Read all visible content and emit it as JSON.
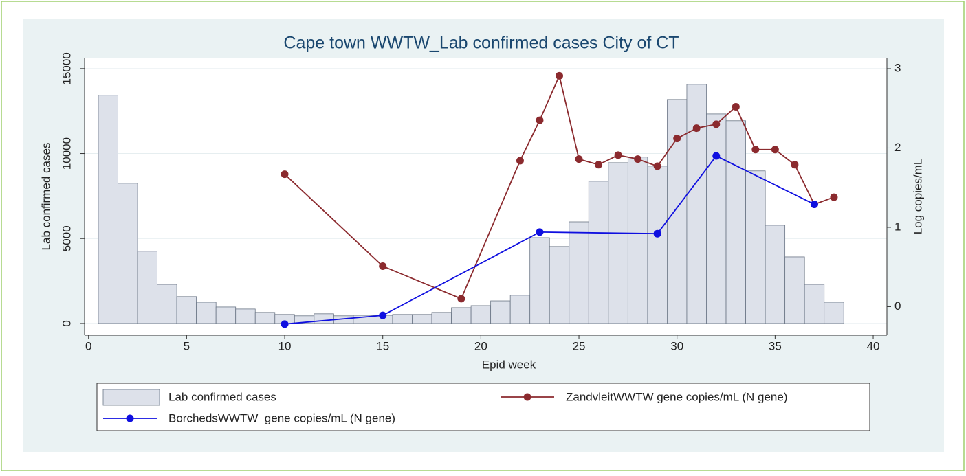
{
  "chart_data": {
    "type": "combo",
    "title": "Cape town WWTW_Lab confirmed cases City of CT",
    "x_label": "Epid week",
    "y_label": "Lab confirmed cases",
    "y2_label": "Log copies/mL",
    "xlim": [
      -0.2,
      40.7
    ],
    "xticks": [
      0,
      5,
      10,
      15,
      20,
      25,
      30,
      35,
      40
    ],
    "ylim": [
      -690,
      15600
    ],
    "yticks": [
      0,
      5000,
      10000,
      15000
    ],
    "y2lim": [
      -0.36,
      3.13
    ],
    "y2ticks": [
      0,
      1,
      2,
      3
    ],
    "grid": true,
    "legend_position": "bottom",
    "series": [
      {
        "name": "Lab confirmed cases",
        "type": "bar",
        "color": "#dde1ea",
        "x": [
          1,
          2,
          3,
          4,
          5,
          6,
          7,
          8,
          9,
          10,
          11,
          12,
          13,
          14,
          15,
          16,
          17,
          18,
          19,
          20,
          21,
          22,
          23,
          24,
          25,
          26,
          27,
          28,
          29,
          30,
          31,
          32,
          33,
          34,
          35,
          36,
          37,
          38
        ],
        "values": [
          13430,
          8250,
          4250,
          2300,
          1580,
          1250,
          970,
          850,
          650,
          530,
          450,
          570,
          450,
          480,
          480,
          530,
          530,
          650,
          930,
          1050,
          1330,
          1660,
          5050,
          4530,
          5980,
          8370,
          9460,
          9790,
          9260,
          13180,
          14070,
          12330,
          11930,
          8980,
          5780,
          3920,
          2300,
          1250
        ]
      },
      {
        "name": "ZandvleitWWTW gene copies/mL (N gene)",
        "type": "line",
        "axis": "y2",
        "color": "#8b2a2e",
        "x": [
          10,
          15,
          19,
          22,
          23,
          24,
          25,
          26,
          27,
          28,
          29,
          30,
          31,
          32,
          33,
          34,
          35,
          36,
          37,
          38
        ],
        "values": [
          1.67,
          0.51,
          0.1,
          1.84,
          2.35,
          2.91,
          1.86,
          1.79,
          1.91,
          1.86,
          1.77,
          2.12,
          2.25,
          2.3,
          2.52,
          1.98,
          1.98,
          1.79,
          1.29,
          1.38
        ]
      },
      {
        "name": "BorchedsWWTW  gene copies/mL (N gene)",
        "type": "line",
        "axis": "y2",
        "color": "#0f0fe0",
        "x": [
          10,
          15,
          23,
          29,
          32,
          37
        ],
        "values": [
          -0.22,
          -0.11,
          0.94,
          0.92,
          1.9,
          1.29
        ]
      }
    ]
  }
}
